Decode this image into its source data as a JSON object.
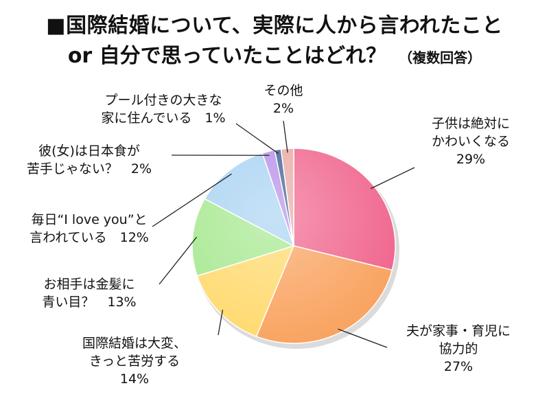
{
  "chart_data": {
    "type": "pie",
    "title_line1": "■国際結婚について、実際に人から言われたこと",
    "title_line2": "or 自分で思っていたことはどれ？",
    "subtitle": "（複数回答）",
    "slices": [
      {
        "label": [
          "子供は絶対に",
          "かわいくなる"
        ],
        "value_label": "29%",
        "value": 29,
        "color": "#f0638c"
      },
      {
        "label": [
          "夫が家事・育児に",
          "協力的"
        ],
        "value_label": "27%",
        "value": 27,
        "color": "#f9a25e"
      },
      {
        "label": [
          "国際結婚は大変、",
          "きっと苦労する"
        ],
        "value_label": "14%",
        "value": 14,
        "color": "#ffd96b"
      },
      {
        "label": [
          "お相手は金髪に",
          "青い目？"
        ],
        "value_label": "13%",
        "value": 13,
        "color": "#a5e88e"
      },
      {
        "label": [
          "毎日“I love you”と",
          "言われている"
        ],
        "value_label": "12%",
        "value": 12,
        "color": "#a8d2f2"
      },
      {
        "label": [
          "彼(女)は日本食が",
          "苦手じゃない？"
        ],
        "value_label": "2%",
        "value": 2,
        "color": "#b58ee8"
      },
      {
        "label": [
          "プール付きの大きな",
          "家に住んでいる"
        ],
        "value_label": "1%",
        "value": 1,
        "color": "#3d5d95"
      },
      {
        "label": [
          "その他"
        ],
        "value_label": "2%",
        "value": 2,
        "color": "#e8a8a2"
      }
    ]
  }
}
